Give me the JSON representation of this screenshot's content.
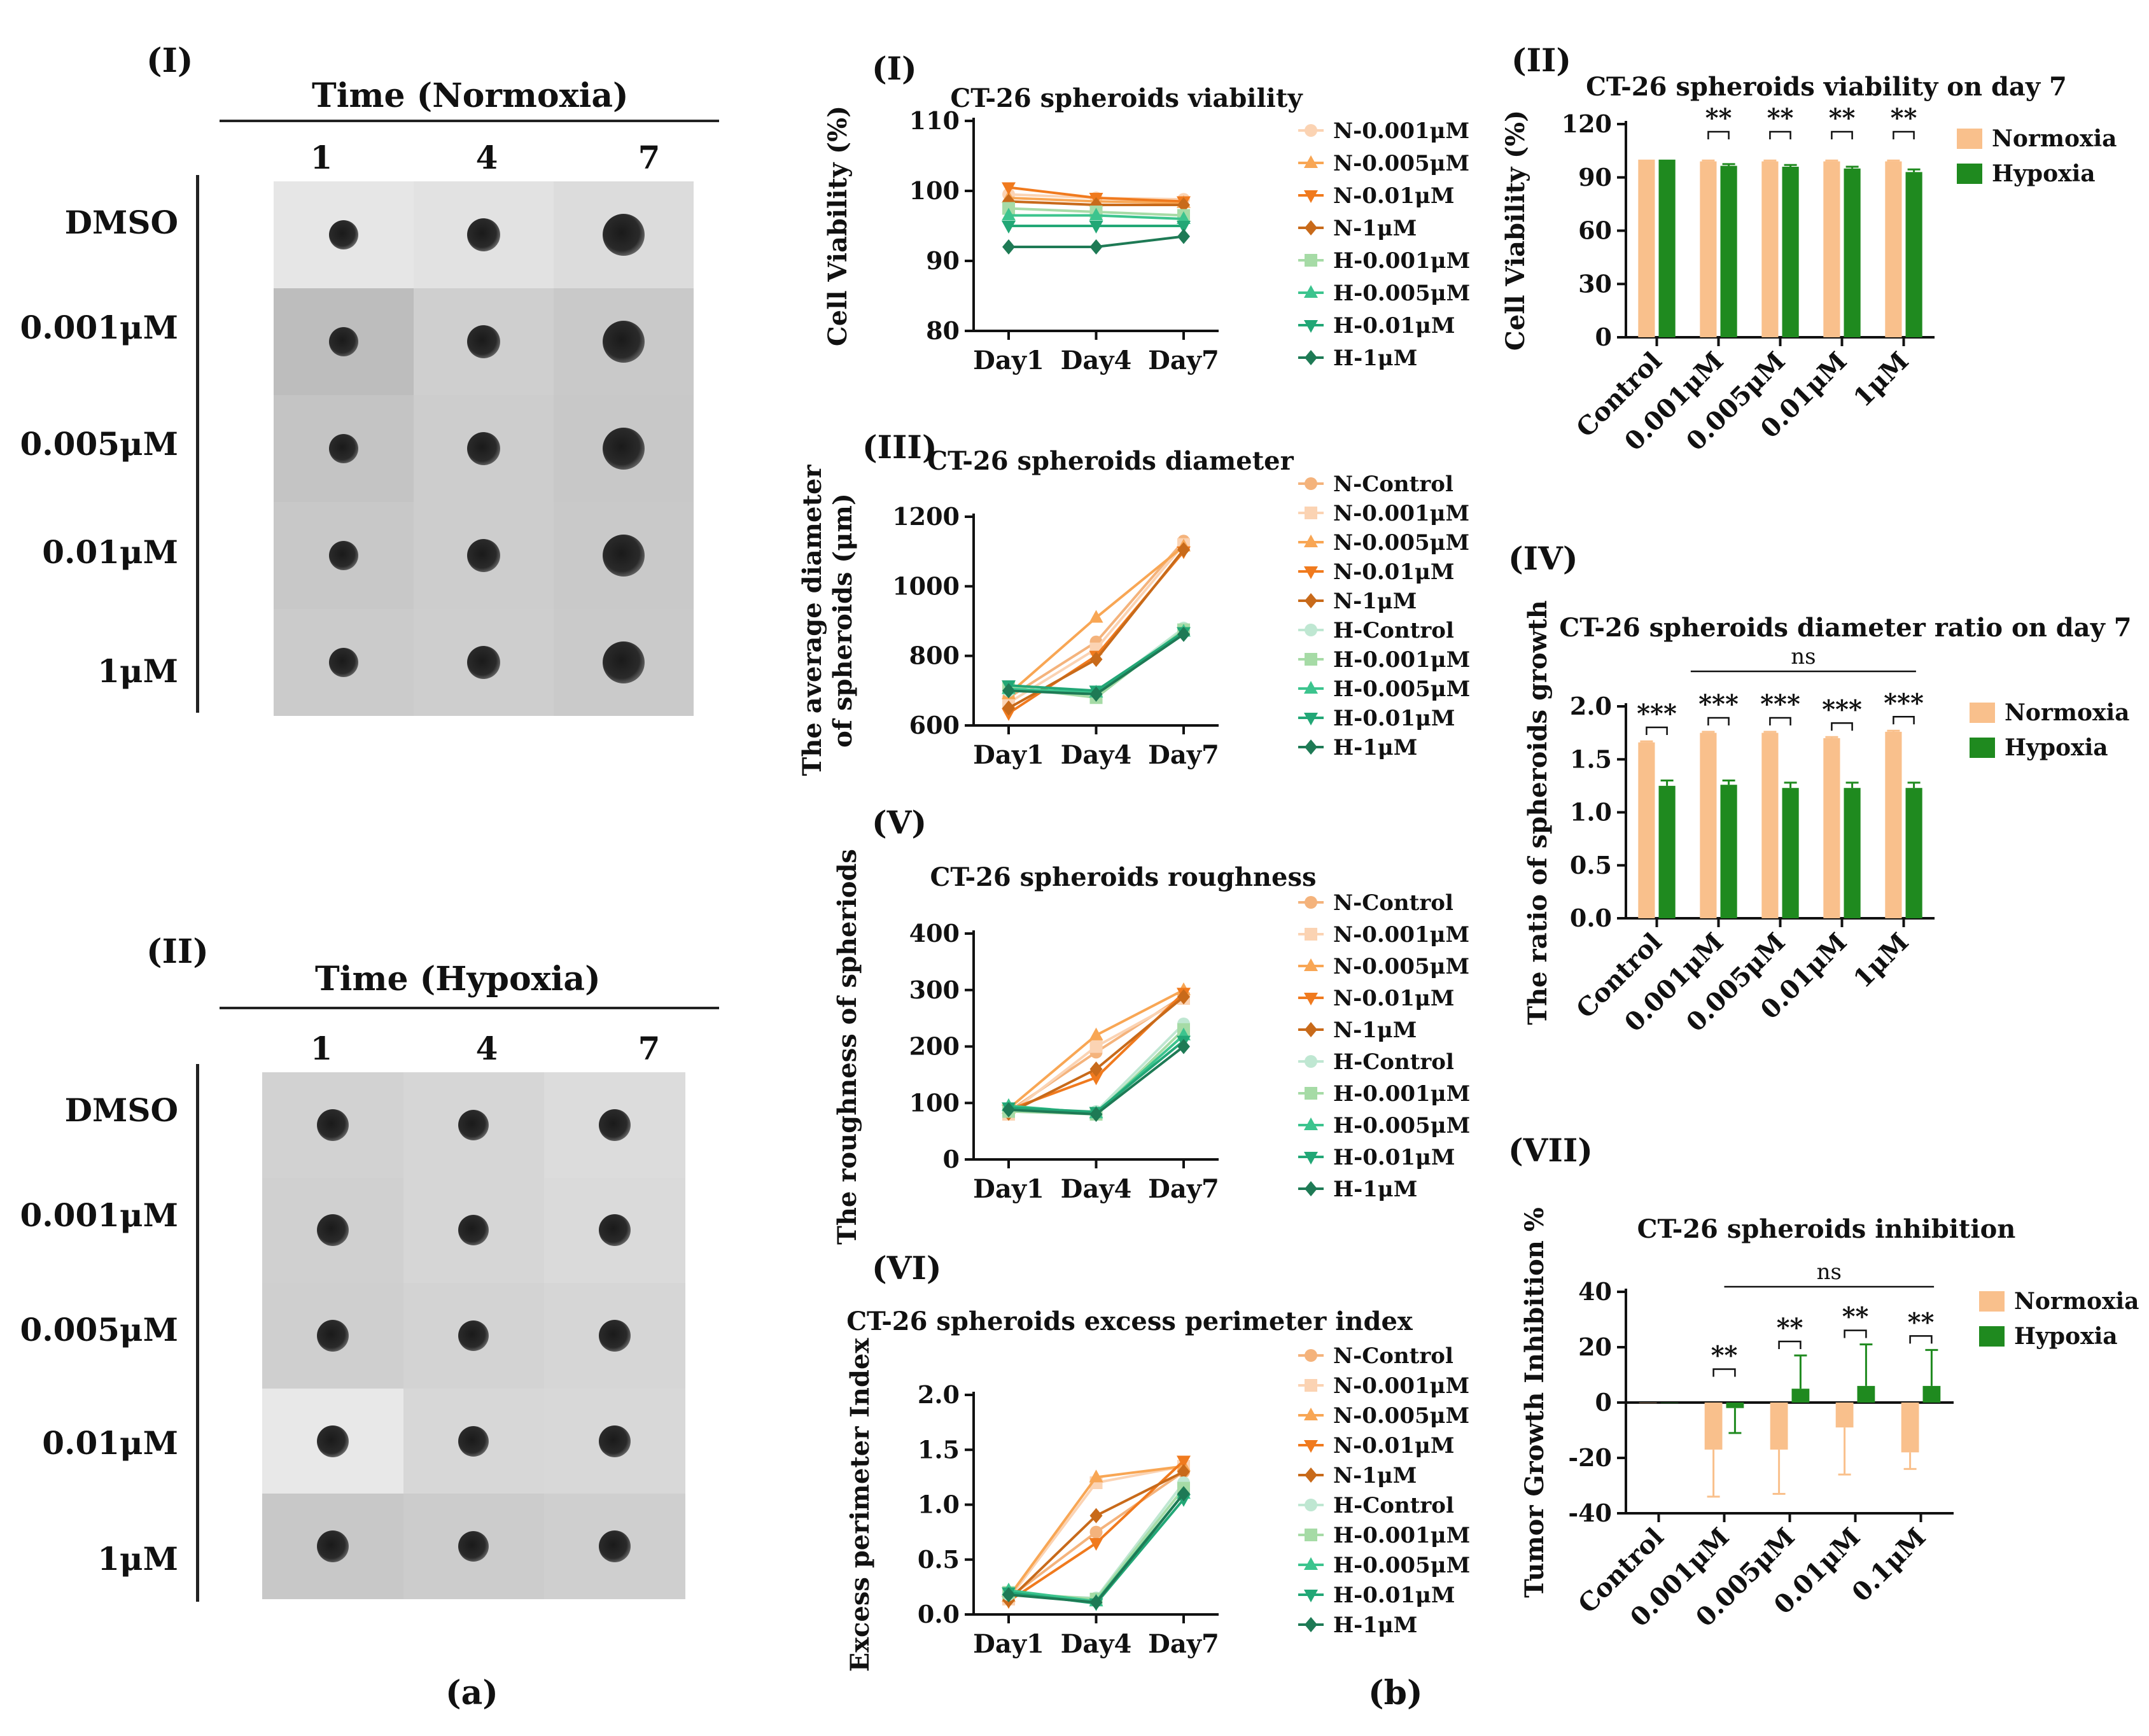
{
  "panel_a": {
    "label": "(a)",
    "sub1": {
      "roman": "(I)",
      "title": "Time (Normoxia)",
      "days": [
        "1",
        "4",
        "7"
      ],
      "rows": [
        "DMSO",
        "0.001μM",
        "0.005μM",
        "0.01μM",
        "1μM"
      ]
    },
    "sub2": {
      "roman": "(II)",
      "title": "Time (Hypoxia)",
      "days": [
        "1",
        "4",
        "7"
      ],
      "rows": [
        "DMSO",
        "0.001μM",
        "0.005μM",
        "0.01μM",
        "1μM"
      ]
    }
  },
  "panel_b_label": "(b)",
  "colors": {
    "N-Control": "#f4b37c",
    "N-0.001μM": "#fbd3b3",
    "N-0.005μM": "#f8a654",
    "N-0.01μM": "#f07a1e",
    "N-1μM": "#c86a1a",
    "H-Control": "#bfe7d2",
    "H-0.001μM": "#a6dba6",
    "H-0.005μM": "#3cc48e",
    "H-0.01μM": "#22a776",
    "H-1μM": "#1e7a55",
    "Normoxia": "#f9c08c",
    "Hypoxia": "#1f8a1f"
  },
  "chart_data": [
    {
      "id": "viability",
      "roman": "(I)",
      "type": "line",
      "title": "CT-26 spheroids viability",
      "xlabel": "",
      "ylabel": "Cell Viability (%)",
      "categories": [
        "Day1",
        "Day4",
        "Day7"
      ],
      "yticks": [
        "80",
        "90",
        "100",
        "110"
      ],
      "ylim": [
        80,
        110
      ],
      "series": [
        {
          "name": "N-0.001μM",
          "values": [
            99.5,
            99,
            98.8
          ],
          "marker": "circle"
        },
        {
          "name": "N-0.005μM",
          "values": [
            99,
            98.5,
            98.3
          ],
          "marker": "triangle"
        },
        {
          "name": "N-0.01μM",
          "values": [
            100.5,
            99,
            98.5
          ],
          "marker": "tridown"
        },
        {
          "name": "N-1μM",
          "values": [
            98.5,
            98,
            98
          ],
          "marker": "diamond"
        },
        {
          "name": "H-0.001μM",
          "values": [
            97.5,
            97,
            96.5
          ],
          "marker": "square"
        },
        {
          "name": "H-0.005μM",
          "values": [
            96.5,
            96.5,
            96
          ],
          "marker": "triangle"
        },
        {
          "name": "H-0.01μM",
          "values": [
            95,
            95,
            95
          ],
          "marker": "tridown"
        },
        {
          "name": "H-1μM",
          "values": [
            92,
            92,
            93.5
          ],
          "marker": "diamond"
        }
      ]
    },
    {
      "id": "diameter",
      "roman": "(III)",
      "type": "line",
      "title": "CT-26 spheroids diameter",
      "ylabel": "The average diameter of spheroids (μm)",
      "ylabel_lines": [
        "The average diameter",
        "of spheroids (μm)"
      ],
      "categories": [
        "Day1",
        "Day4",
        "Day7"
      ],
      "yticks": [
        "600",
        "800",
        "1000",
        "1200"
      ],
      "ylim": [
        600,
        1200
      ],
      "series": [
        {
          "name": "N-Control",
          "values": [
            680,
            840,
            1130
          ],
          "marker": "circle"
        },
        {
          "name": "N-0.001μM",
          "values": [
            665,
            820,
            1120
          ],
          "marker": "square"
        },
        {
          "name": "N-0.005μM",
          "values": [
            690,
            910,
            1115
          ],
          "marker": "triangle"
        },
        {
          "name": "N-0.01μM",
          "values": [
            635,
            800,
            1100
          ],
          "marker": "tridown"
        },
        {
          "name": "N-1μM",
          "values": [
            650,
            790,
            1105
          ],
          "marker": "diamond"
        },
        {
          "name": "H-Control",
          "values": [
            700,
            690,
            880
          ],
          "marker": "circle"
        },
        {
          "name": "H-0.001μM",
          "values": [
            710,
            680,
            875
          ],
          "marker": "square"
        },
        {
          "name": "H-0.005μM",
          "values": [
            705,
            695,
            870
          ],
          "marker": "triangle"
        },
        {
          "name": "H-0.01μM",
          "values": [
            715,
            700,
            868
          ],
          "marker": "tridown"
        },
        {
          "name": "H-1μM",
          "values": [
            700,
            690,
            862
          ],
          "marker": "diamond"
        }
      ]
    },
    {
      "id": "roughness",
      "roman": "(V)",
      "type": "line",
      "title": "CT-26 spheroids roughness",
      "ylabel": "The roughness of spheriods",
      "categories": [
        "Day1",
        "Day4",
        "Day7"
      ],
      "yticks": [
        "0",
        "100",
        "200",
        "300",
        "400"
      ],
      "ylim": [
        0,
        400
      ],
      "series": [
        {
          "name": "N-Control",
          "values": [
            85,
            190,
            290
          ],
          "marker": "circle"
        },
        {
          "name": "N-0.001μM",
          "values": [
            80,
            200,
            285
          ],
          "marker": "square"
        },
        {
          "name": "N-0.005μM",
          "values": [
            90,
            220,
            300
          ],
          "marker": "triangle"
        },
        {
          "name": "N-0.01μM",
          "values": [
            88,
            145,
            295
          ],
          "marker": "tridown"
        },
        {
          "name": "N-1μM",
          "values": [
            82,
            160,
            288
          ],
          "marker": "diamond"
        },
        {
          "name": "H-Control",
          "values": [
            90,
            85,
            240
          ],
          "marker": "circle"
        },
        {
          "name": "H-0.001μM",
          "values": [
            85,
            80,
            230
          ],
          "marker": "square"
        },
        {
          "name": "H-0.005μM",
          "values": [
            95,
            82,
            220
          ],
          "marker": "triangle"
        },
        {
          "name": "H-0.01μM",
          "values": [
            92,
            84,
            210
          ],
          "marker": "tridown"
        },
        {
          "name": "H-1μM",
          "values": [
            88,
            80,
            200
          ],
          "marker": "diamond"
        }
      ]
    },
    {
      "id": "epi",
      "roman": "(VI)",
      "type": "line",
      "title": "CT-26 spheroids excess perimeter index",
      "ylabel": "Excess perimeter Index",
      "categories": [
        "Day1",
        "Day4",
        "Day7"
      ],
      "yticks": [
        "0.0",
        "0.5",
        "1.0",
        "1.5",
        "2.0"
      ],
      "ylim": [
        0,
        2.0
      ],
      "series": [
        {
          "name": "N-Control",
          "values": [
            0.15,
            0.75,
            1.3
          ],
          "marker": "circle"
        },
        {
          "name": "N-0.001μM",
          "values": [
            0.14,
            1.2,
            1.35
          ],
          "marker": "square"
        },
        {
          "name": "N-0.005μM",
          "values": [
            0.16,
            1.25,
            1.35
          ],
          "marker": "triangle"
        },
        {
          "name": "N-0.01μM",
          "values": [
            0.12,
            0.65,
            1.4
          ],
          "marker": "tridown"
        },
        {
          "name": "N-1μM",
          "values": [
            0.13,
            0.9,
            1.3
          ],
          "marker": "diamond"
        },
        {
          "name": "H-Control",
          "values": [
            0.18,
            0.15,
            1.2
          ],
          "marker": "circle"
        },
        {
          "name": "H-0.001μM",
          "values": [
            0.2,
            0.14,
            1.15
          ],
          "marker": "square"
        },
        {
          "name": "H-0.005μM",
          "values": [
            0.22,
            0.12,
            1.1
          ],
          "marker": "triangle"
        },
        {
          "name": "H-0.01μM",
          "values": [
            0.2,
            0.1,
            1.05
          ],
          "marker": "tridown"
        },
        {
          "name": "H-1μM",
          "values": [
            0.18,
            0.11,
            1.1
          ],
          "marker": "diamond"
        }
      ]
    },
    {
      "id": "viab_day7",
      "roman": "(II)",
      "type": "bar",
      "title": "CT-26 spheroids viability on day 7",
      "ylabel": "Cell Viability (%)",
      "categories": [
        "Control",
        "0.001μM",
        "0.005μM",
        "0.01μM",
        "1μM"
      ],
      "yticks": [
        "0",
        "30",
        "60",
        "90",
        "120"
      ],
      "ylim": [
        0,
        120
      ],
      "series": [
        {
          "name": "Normoxia",
          "values": [
            100,
            99,
            99,
            99,
            99
          ],
          "err": [
            0,
            0.5,
            0.5,
            0.5,
            0.5
          ]
        },
        {
          "name": "Hypoxia",
          "values": [
            100,
            96.5,
            96,
            95,
            93
          ],
          "err": [
            0,
            1,
            1,
            1,
            1.5
          ]
        }
      ],
      "sig": [
        "",
        "**",
        "**",
        "**",
        "**"
      ],
      "ns": ""
    },
    {
      "id": "ratio_day7",
      "roman": "(IV)",
      "type": "bar",
      "title": "CT-26 spheroids diameter ratio on day 7",
      "ylabel": "The ratio of spheroids growth",
      "categories": [
        "Control",
        "0.001μM",
        "0.005μM",
        "0.01μM",
        "1μM"
      ],
      "yticks": [
        "0.0",
        "0.5",
        "1.0",
        "1.5",
        "2.0"
      ],
      "ylim": [
        0,
        2.0
      ],
      "series": [
        {
          "name": "Normoxia",
          "values": [
            1.66,
            1.75,
            1.75,
            1.7,
            1.76
          ],
          "err": [
            0.01,
            0.01,
            0.01,
            0.01,
            0.01
          ]
        },
        {
          "name": "Hypoxia",
          "values": [
            1.25,
            1.26,
            1.23,
            1.23,
            1.23
          ],
          "err": [
            0.05,
            0.04,
            0.05,
            0.05,
            0.05
          ]
        }
      ],
      "sig": [
        "***",
        "***",
        "***",
        "***",
        "***"
      ],
      "ns": "ns"
    },
    {
      "id": "inhibition",
      "roman": "(VII)",
      "type": "bar",
      "title": "CT-26 spheroids inhibition",
      "ylabel": "Tumor Growth Inhibition %",
      "categories": [
        "Control",
        "0.001μM",
        "0.005μM",
        "0.01μM",
        "0.1μM"
      ],
      "yticks": [
        "-40",
        "-20",
        "0",
        "20",
        "40"
      ],
      "ylim": [
        -40,
        40
      ],
      "series": [
        {
          "name": "Normoxia",
          "values": [
            0,
            -17,
            -17,
            -9,
            -18
          ],
          "err": [
            0,
            17,
            16,
            17,
            6
          ]
        },
        {
          "name": "Hypoxia",
          "values": [
            0,
            -2,
            5,
            6,
            6
          ],
          "err": [
            0,
            9,
            12,
            15,
            13
          ]
        }
      ],
      "sig": [
        "",
        "**",
        "**",
        "**",
        "**"
      ],
      "ns": "ns"
    }
  ]
}
